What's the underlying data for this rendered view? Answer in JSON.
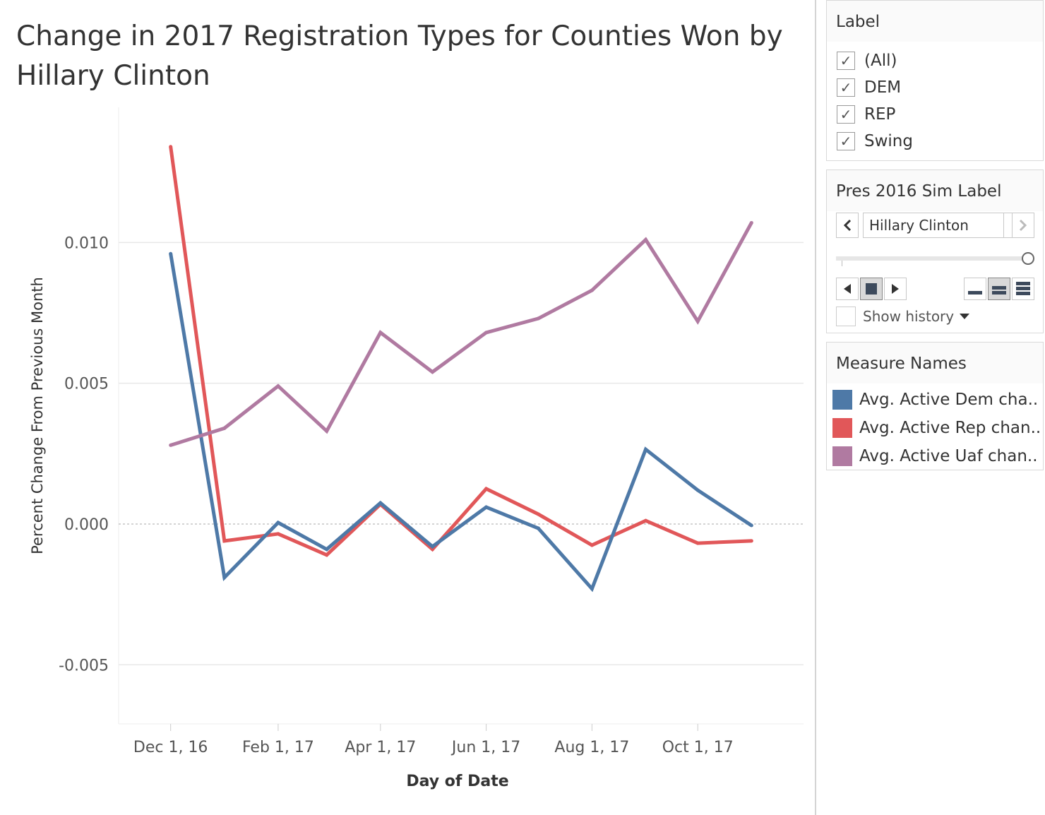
{
  "title": "Change in 2017 Registration Types for Counties Won by Hillary Clinton",
  "chart_data": {
    "type": "line",
    "x": [
      "2016-12-01",
      "2017-01-01",
      "2017-02-01",
      "2017-03-01",
      "2017-04-01",
      "2017-05-01",
      "2017-06-01",
      "2017-07-01",
      "2017-08-01",
      "2017-09-01",
      "2017-10-01",
      "2017-11-01"
    ],
    "series": [
      {
        "name": "Avg. Active Dem cha..",
        "color": "#4e79a7",
        "values": [
          0.0096,
          -0.0019,
          5e-05,
          -0.0009,
          0.00075,
          -0.0008,
          0.0006,
          -0.00015,
          -0.0023,
          0.00265,
          0.0012,
          -5e-05
        ]
      },
      {
        "name": "Avg. Active Rep chan..",
        "color": "#e15759",
        "values": [
          0.0134,
          -0.0006,
          -0.00035,
          -0.0011,
          0.0007,
          -0.0009,
          0.00125,
          0.00035,
          -0.00075,
          0.00012,
          -0.00068,
          -0.0006
        ]
      },
      {
        "name": "Avg. Active Uaf chan..",
        "color": "#b07aa1",
        "values": [
          0.0028,
          0.0034,
          0.0049,
          0.0033,
          0.0068,
          0.0054,
          0.0068,
          0.0073,
          0.0083,
          0.0101,
          0.0072,
          0.0107
        ]
      }
    ],
    "xlabel": "Day of Date",
    "ylabel": "Percent Change From Previous Month",
    "ylim": [
      -0.0071,
      0.0148
    ],
    "yticks": [
      "0.010",
      "0.005",
      "0.000",
      "-0.005"
    ],
    "ytick_values": [
      0.01,
      0.005,
      0,
      -0.005
    ],
    "xticks": [
      "Dec 1, 16",
      "Feb 1, 17",
      "Apr 1, 17",
      "Jun 1, 17",
      "Aug 1, 17",
      "Oct 1, 17"
    ],
    "xtick_dates": [
      "2016-12-01",
      "2017-02-01",
      "2017-04-01",
      "2017-06-01",
      "2017-08-01",
      "2017-10-01"
    ],
    "grid": true,
    "zero_line": true
  },
  "filters": {
    "label_card": {
      "title": "Label",
      "items": [
        "(All)",
        "DEM",
        "REP",
        "Swing"
      ]
    },
    "pres_card": {
      "title": "Pres 2016 Sim Label",
      "selected": "Hillary Clinton",
      "show_history": "Show history"
    },
    "legend_card": {
      "title": "Measure Names"
    }
  }
}
